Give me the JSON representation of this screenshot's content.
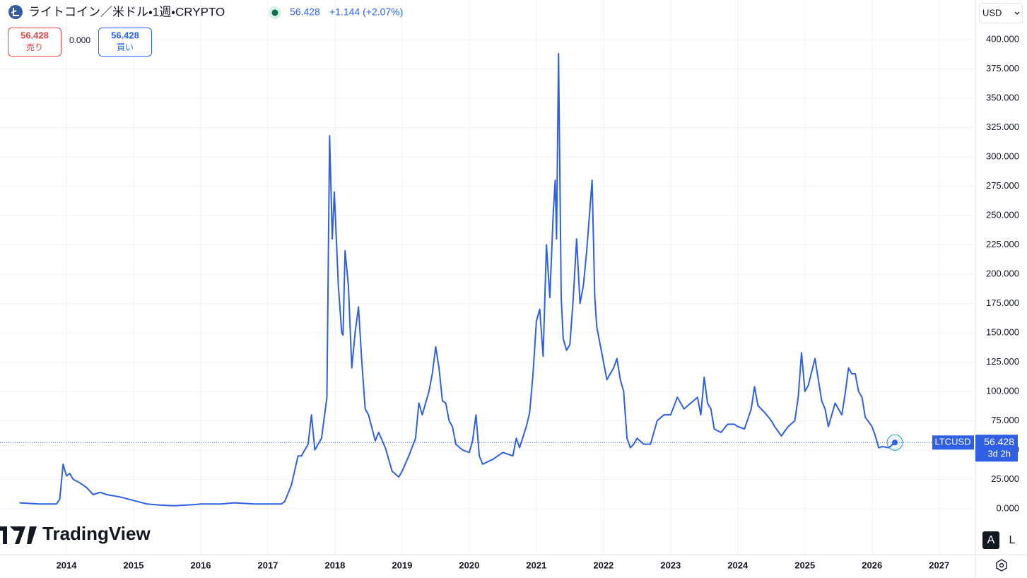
{
  "chart_data": {
    "type": "line",
    "title": "ライトコイン／米ドル・1週・CRYPTO",
    "x": [
      2013.3,
      2013.6,
      2013.85,
      2013.9,
      2013.95,
      2014.0,
      2014.05,
      2014.1,
      2014.2,
      2014.3,
      2014.4,
      2014.5,
      2014.6,
      2014.8,
      2015.0,
      2015.2,
      2015.4,
      2015.6,
      2015.9,
      2016.0,
      2016.3,
      2016.5,
      2016.8,
      2017.0,
      2017.2,
      2017.25,
      2017.35,
      2017.45,
      2017.5,
      2017.6,
      2017.65,
      2017.7,
      2017.8,
      2017.88,
      2017.92,
      2017.96,
      2017.99,
      2018.05,
      2018.1,
      2018.12,
      2018.15,
      2018.2,
      2018.25,
      2018.3,
      2018.35,
      2018.4,
      2018.45,
      2018.5,
      2018.6,
      2018.65,
      2018.75,
      2018.85,
      2018.95,
      2019.0,
      2019.1,
      2019.2,
      2019.25,
      2019.3,
      2019.4,
      2019.45,
      2019.5,
      2019.55,
      2019.6,
      2019.65,
      2019.7,
      2019.75,
      2019.8,
      2019.9,
      2020.0,
      2020.05,
      2020.1,
      2020.15,
      2020.2,
      2020.35,
      2020.5,
      2020.65,
      2020.7,
      2020.75,
      2020.85,
      2020.9,
      2020.95,
      2021.0,
      2021.05,
      2021.1,
      2021.15,
      2021.2,
      2021.25,
      2021.28,
      2021.3,
      2021.33,
      2021.37,
      2021.4,
      2021.45,
      2021.5,
      2021.55,
      2021.6,
      2021.65,
      2021.7,
      2021.75,
      2021.83,
      2021.87,
      2021.9,
      2021.95,
      2022.0,
      2022.05,
      2022.15,
      2022.2,
      2022.25,
      2022.3,
      2022.35,
      2022.4,
      2022.45,
      2022.5,
      2022.6,
      2022.7,
      2022.8,
      2022.9,
      2023.0,
      2023.1,
      2023.2,
      2023.3,
      2023.4,
      2023.45,
      2023.5,
      2023.55,
      2023.6,
      2023.65,
      2023.75,
      2023.85,
      2023.95,
      2024.0,
      2024.1,
      2024.2,
      2024.25,
      2024.3,
      2024.4,
      2024.5,
      2024.55,
      2024.65,
      2024.75,
      2024.85,
      2024.9,
      2024.95,
      2025.0,
      2025.05,
      2025.15,
      2025.2,
      2025.25,
      2025.3,
      2025.35,
      2025.45,
      2025.55,
      2025.6,
      2025.65,
      2025.7,
      2025.75,
      2025.8,
      2025.85,
      2025.9,
      2026.0,
      2026.05,
      2026.1,
      2026.15,
      2026.25,
      2026.34
    ],
    "series": [
      {
        "name": "LTCUSD",
        "color": "#2f5fe3",
        "values": [
          5,
          4,
          4,
          8,
          38,
          28,
          30,
          25,
          22,
          18,
          12,
          14,
          12,
          10,
          7,
          4,
          3,
          2.5,
          3.5,
          4,
          4,
          5,
          4,
          4,
          4,
          6,
          20,
          45,
          45,
          55,
          80,
          50,
          60,
          95,
          318,
          230,
          270,
          190,
          150,
          148,
          220,
          190,
          120,
          150,
          172,
          125,
          85,
          80,
          58,
          65,
          52,
          32,
          27,
          32,
          45,
          60,
          90,
          80,
          100,
          115,
          138,
          120,
          92,
          90,
          75,
          70,
          55,
          50,
          48,
          58,
          80,
          45,
          38,
          42,
          48,
          45,
          60,
          52,
          70,
          82,
          115,
          160,
          170,
          130,
          225,
          180,
          250,
          280,
          230,
          388,
          180,
          145,
          135,
          140,
          180,
          230,
          175,
          190,
          220,
          280,
          180,
          155,
          140,
          125,
          110,
          120,
          128,
          110,
          100,
          60,
          52,
          55,
          60,
          55,
          55,
          75,
          80,
          80,
          95,
          85,
          90,
          95,
          80,
          112,
          90,
          85,
          68,
          65,
          72,
          72,
          70,
          68,
          85,
          104,
          88,
          82,
          75,
          70,
          62,
          70,
          75,
          95,
          133,
          100,
          105,
          128,
          110,
          92,
          85,
          70,
          90,
          80,
          98,
          120,
          115,
          115,
          100,
          95,
          78,
          70,
          62,
          52,
          53,
          52,
          56.428
        ]
      }
    ],
    "xlim": [
      2013.01,
      2027.54
    ],
    "ylim": [
      -39.2,
      433.7
    ],
    "xticks": [
      2014,
      2015,
      2016,
      2017,
      2018,
      2019,
      2020,
      2021,
      2022,
      2023,
      2024,
      2025,
      2026,
      2027
    ],
    "yticks": [
      {
        "value": 0,
        "label": "0.000"
      },
      {
        "value": 25,
        "label": "25.000"
      },
      {
        "value": 50,
        "label": "50.000"
      },
      {
        "value": 75,
        "label": "75.000"
      },
      {
        "value": 100,
        "label": "100.000"
      },
      {
        "value": 125,
        "label": "125.000"
      },
      {
        "value": 150,
        "label": "150.000"
      },
      {
        "value": 175,
        "label": "175.000"
      },
      {
        "value": 200,
        "label": "200.000"
      },
      {
        "value": 225,
        "label": "225.000"
      },
      {
        "value": 250,
        "label": "250.000"
      },
      {
        "value": 275,
        "label": "275.000"
      },
      {
        "value": 300,
        "label": "300.000"
      },
      {
        "value": 325,
        "label": "325.000"
      },
      {
        "value": 350,
        "label": "350.000"
      },
      {
        "value": 375,
        "label": "375.000"
      },
      {
        "value": 400,
        "label": "400.000"
      }
    ],
    "grid": true,
    "countdown": "3d 2h",
    "currency": "USD"
  },
  "header": {
    "change": "+1.144 (+2.07%)",
    "trade": {
      "sell_price": "56.428",
      "sell_label": "売り",
      "spread": "0.000",
      "buy_price": "56.428",
      "buy_label": "買い"
    }
  },
  "scale_buttons": [
    "A",
    "L"
  ],
  "logo": "TradingView"
}
